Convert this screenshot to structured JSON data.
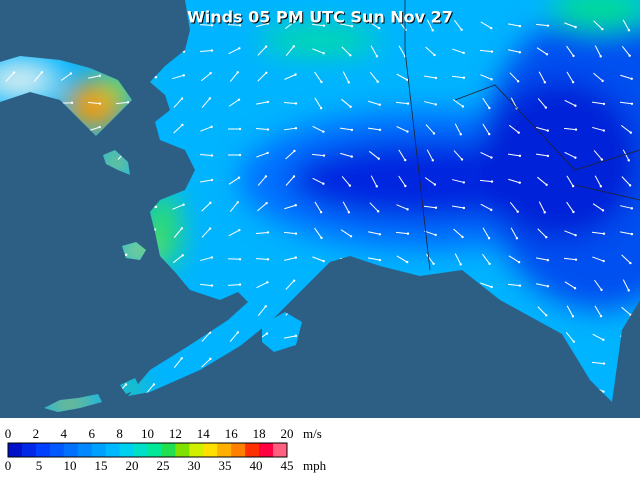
{
  "map": {
    "title": "Winds 05 PM UTC Sun Nov 27"
  },
  "legend": {
    "colors": [
      "#0010c8",
      "#0028e6",
      "#0040ff",
      "#0058ff",
      "#0070ff",
      "#0088ff",
      "#00a0ff",
      "#00b8ff",
      "#00d0f0",
      "#00e0c8",
      "#00e898",
      "#20e050",
      "#80e000",
      "#d0f000",
      "#ffe000",
      "#ffb000",
      "#ff8000",
      "#ff3000",
      "#ff0040",
      "#ff6080"
    ],
    "ms": {
      "ticks": [
        "0",
        "2",
        "4",
        "6",
        "8",
        "10",
        "12",
        "14",
        "16",
        "18",
        "20"
      ],
      "unit": "m/s"
    },
    "mph": {
      "ticks": [
        "0",
        "5",
        "10",
        "15",
        "20",
        "25",
        "30",
        "35",
        "40",
        "45"
      ],
      "unit": "mph"
    }
  }
}
